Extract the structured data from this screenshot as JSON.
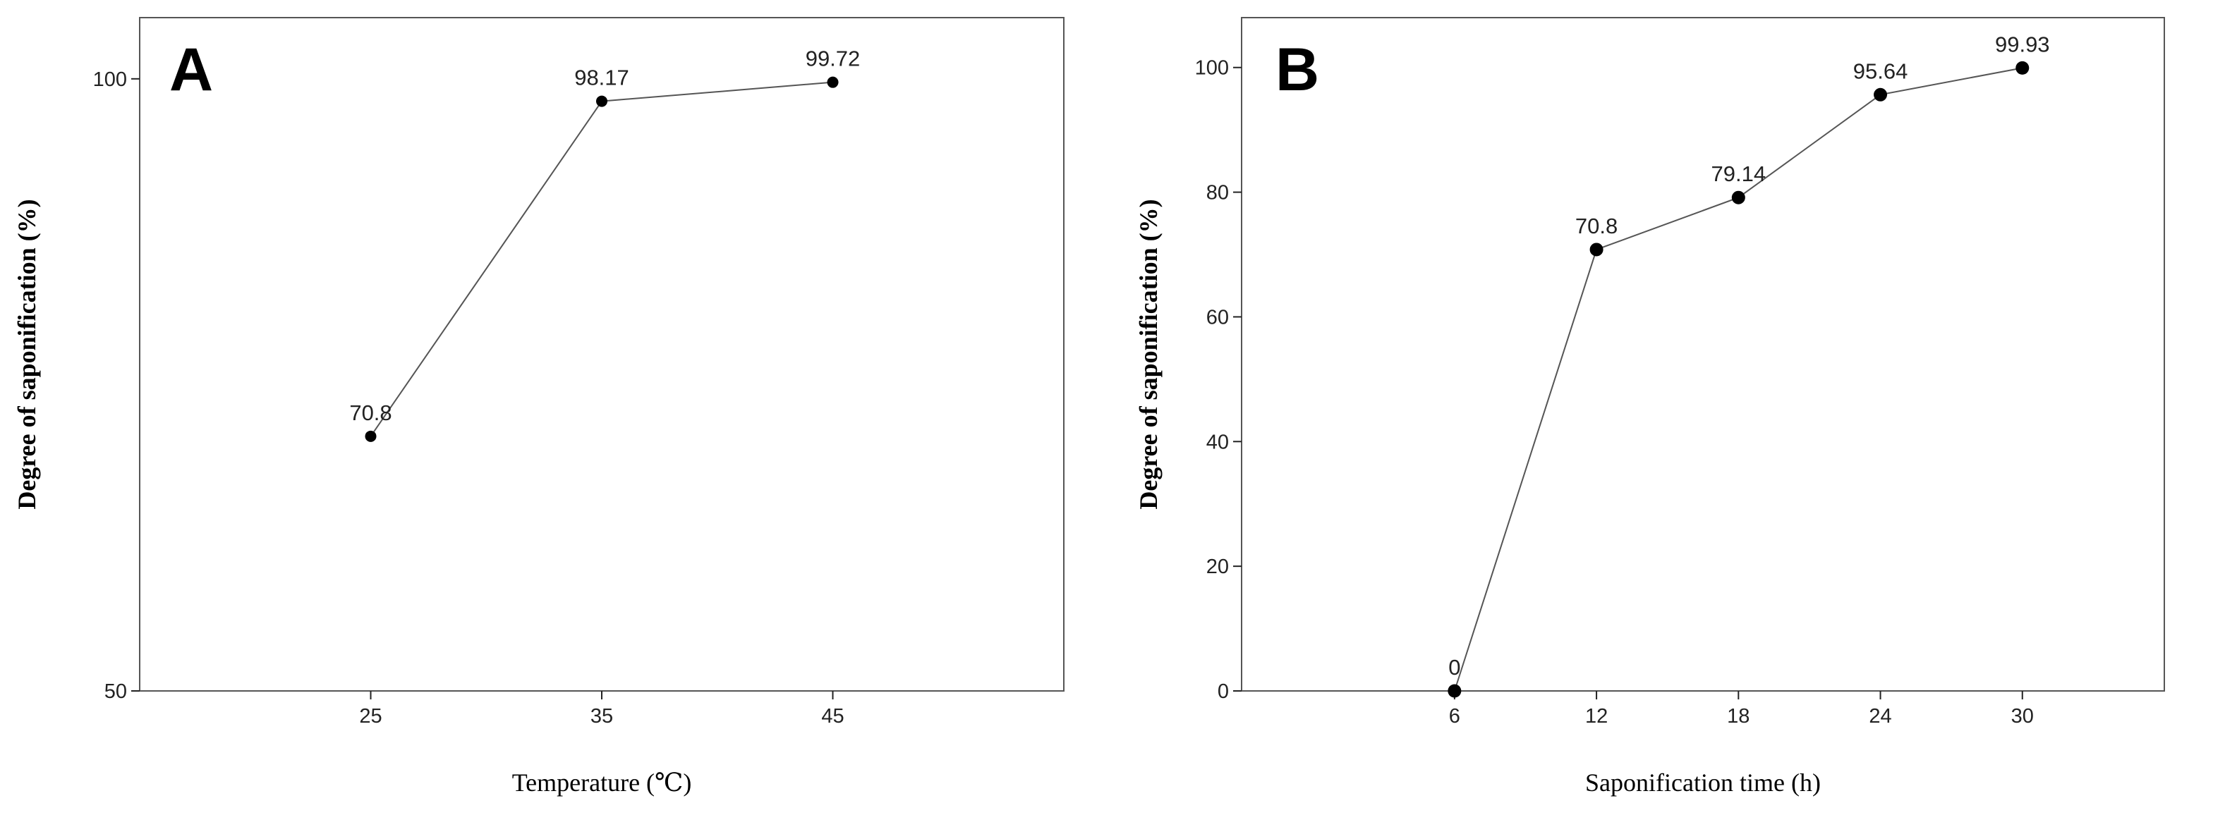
{
  "chart_data": [
    {
      "type": "line",
      "panel_label": "A",
      "xlabel": "Temperature (℃)",
      "ylabel": "Degree of saponification (%)",
      "x": [
        25,
        35,
        45
      ],
      "xticks": [
        "25",
        "35",
        "45"
      ],
      "xlim": [
        15,
        55
      ],
      "ylim": [
        50,
        105
      ],
      "yticks": [
        "50",
        "100"
      ],
      "series": [
        {
          "values": [
            70.8,
            98.17,
            99.72
          ],
          "labels": [
            "70.8",
            "98.17",
            "99.72"
          ]
        }
      ],
      "grid": false,
      "colors": {
        "line": "#555555",
        "marker": "#000000"
      }
    },
    {
      "type": "line",
      "panel_label": "B",
      "xlabel": "Saponification time (h)",
      "ylabel": "Degree of saponification (%)",
      "x": [
        6,
        12,
        18,
        24,
        30
      ],
      "xticks": [
        "6",
        "12",
        "18",
        "24",
        "30"
      ],
      "xlim": [
        -3,
        36
      ],
      "ylim": [
        0,
        108
      ],
      "yticks": [
        "0",
        "20",
        "40",
        "60",
        "80",
        "100"
      ],
      "series": [
        {
          "values": [
            0,
            70.8,
            79.14,
            95.64,
            99.93
          ],
          "labels": [
            "0",
            "70.8",
            "79.14",
            "95.64",
            "99.93"
          ]
        }
      ],
      "grid": false,
      "colors": {
        "line": "#555555",
        "marker": "#000000"
      }
    }
  ]
}
